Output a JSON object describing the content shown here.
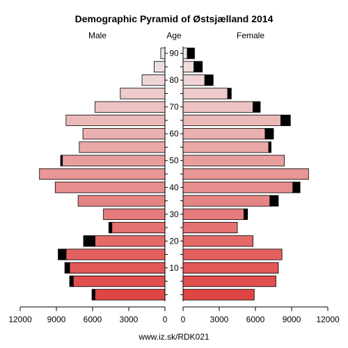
{
  "chart_data": {
    "type": "bar",
    "title": "Demographic Pyramid of Østsjælland 2014",
    "left_label": "Male",
    "center_label": "Age",
    "right_label": "Female",
    "footer": "www.iz.sk/RDK021",
    "age_groups": [
      "0-4",
      "5-9",
      "10-14",
      "15-19",
      "20-24",
      "25-29",
      "30-34",
      "35-39",
      "40-44",
      "45-49",
      "50-54",
      "55-59",
      "60-64",
      "65-69",
      "70-74",
      "75-79",
      "80-84",
      "85-89",
      "90+"
    ],
    "age_tick_labels": [
      "10",
      "20",
      "30",
      "40",
      "50",
      "60",
      "70",
      "80",
      "90"
    ],
    "age_tick_values": [
      10,
      20,
      30,
      40,
      50,
      60,
      70,
      80,
      90
    ],
    "x_ticks_male": [
      "12000",
      "9000",
      "6000",
      "3000",
      "0"
    ],
    "x_ticks_female": [
      "0",
      "3000",
      "6000",
      "9000",
      "12000"
    ],
    "xlim": [
      0,
      12000
    ],
    "series": [
      {
        "name": "Male",
        "values": [
          5800,
          7600,
          7900,
          8200,
          5800,
          4400,
          5100,
          7200,
          9100,
          10400,
          8500,
          7100,
          6800,
          8200,
          5800,
          3700,
          1900,
          900,
          350
        ]
      },
      {
        "name": "Male excess",
        "values": [
          250,
          300,
          400,
          650,
          950,
          250,
          0,
          0,
          0,
          0,
          150,
          0,
          0,
          0,
          0,
          0,
          0,
          0,
          0
        ]
      },
      {
        "name": "Female",
        "values": [
          5900,
          7700,
          7900,
          8200,
          5800,
          4500,
          5050,
          7200,
          9100,
          10400,
          8400,
          7100,
          6800,
          8100,
          5800,
          3700,
          1800,
          900,
          350
        ]
      },
      {
        "name": "Female excess",
        "values": [
          0,
          0,
          0,
          0,
          0,
          0,
          300,
          700,
          600,
          0,
          0,
          200,
          700,
          800,
          600,
          300,
          700,
          700,
          600
        ]
      }
    ],
    "colors": {
      "young": "#e04545",
      "old": "#f0e6e6",
      "excess": "#000000"
    },
    "grid": false
  }
}
